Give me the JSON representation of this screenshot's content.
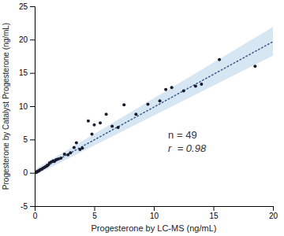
{
  "chart_data": {
    "type": "scatter",
    "xlabel": "Progesterone by LC-MS (ng/mL)",
    "ylabel": "Progesterone by Catalyst Progesterone (ng/mL)",
    "xlim": [
      0,
      20
    ],
    "ylim": [
      -5,
      25
    ],
    "xticks": [
      0,
      5,
      10,
      15,
      20
    ],
    "yticks": [
      -5,
      0,
      5,
      10,
      15,
      20,
      25
    ],
    "grid": false,
    "series": [
      {
        "type": "scatter",
        "color": "#1a1a2e",
        "marker": "circle",
        "x": [
          0.05,
          0.1,
          0.15,
          0.18,
          0.22,
          0.28,
          0.35,
          0.42,
          0.5,
          0.6,
          0.7,
          0.8,
          0.9,
          1.0,
          1.05,
          1.15,
          1.25,
          1.4,
          1.55,
          1.65,
          1.75,
          1.85,
          2.0,
          2.2,
          2.5,
          2.8,
          3.0,
          3.3,
          3.5,
          3.8,
          4.0,
          4.5,
          4.8,
          5.0,
          5.5,
          6.0,
          6.5,
          7.0,
          7.5,
          8.5,
          9.5,
          10.5,
          11.0,
          11.5,
          12.5,
          13.5,
          14.0,
          15.5,
          18.5
        ],
        "values": [
          0.05,
          0.08,
          0.1,
          0.15,
          0.2,
          0.25,
          0.3,
          0.4,
          0.5,
          0.55,
          0.7,
          0.8,
          0.9,
          1.0,
          1.1,
          1.2,
          1.5,
          1.65,
          1.8,
          1.7,
          1.9,
          2.0,
          2.1,
          2.2,
          2.8,
          2.7,
          3.0,
          3.8,
          4.5,
          3.5,
          3.7,
          7.8,
          5.8,
          7.2,
          7.5,
          8.8,
          7.0,
          6.8,
          10.2,
          8.8,
          10.3,
          10.8,
          12.5,
          12.8,
          12.3,
          13.0,
          13.3,
          17.0,
          16.0
        ]
      },
      {
        "type": "line",
        "color": "#3a5a8a",
        "line_style": "dotted",
        "x": [
          0,
          20
        ],
        "values": [
          0.03,
          19.69
        ]
      },
      {
        "type": "area",
        "color": "#c5dcee",
        "x": [
          0,
          20
        ],
        "lower": [
          -0.4,
          17.6
        ],
        "upper": [
          0.5,
          21.9
        ]
      }
    ],
    "annotations": [
      "n = 49",
      "r  = 0.98"
    ]
  }
}
